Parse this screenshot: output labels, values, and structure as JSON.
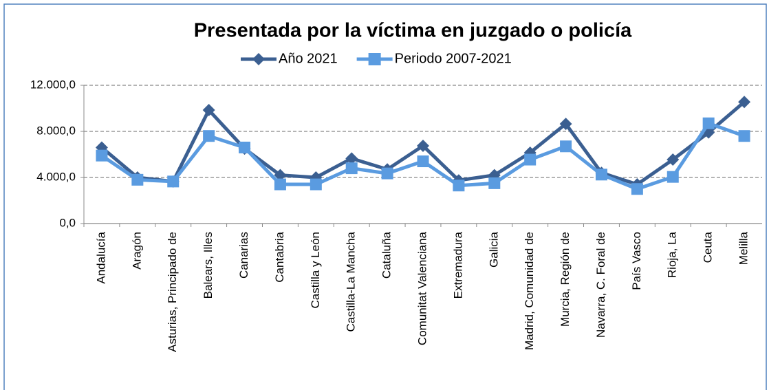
{
  "chart_data": {
    "type": "line",
    "title": "Presentada por la víctima en juzgado o policía",
    "categories": [
      "Andalucía",
      "Aragón",
      "Asturias, Principado de",
      "Balears, Illes",
      "Canarias",
      "Cantabria",
      "Castilla y León",
      "Castilla-La Mancha",
      "Cataluña",
      "Comunitat Valenciana",
      "Extremadura",
      "Galicia",
      "Madrid, Comunidad de",
      "Murcia,  Región de",
      "Navarra, C. Foral de",
      "País Vasco",
      "Rioja, La",
      "Ceuta",
      "Melilla"
    ],
    "series": [
      {
        "name": "Año 2021",
        "color": "#3b5f91",
        "marker": "diamond",
        "values": [
          6600,
          4000,
          3650,
          9850,
          6500,
          4200,
          4000,
          5650,
          4700,
          6750,
          3750,
          4200,
          6150,
          8650,
          4400,
          3400,
          5550,
          7900,
          10550
        ]
      },
      {
        "name": "Periodo 2007-2021",
        "color": "#5a9be0",
        "marker": "square",
        "values": [
          5900,
          3800,
          3650,
          7600,
          6600,
          3400,
          3400,
          4800,
          4350,
          5400,
          3300,
          3500,
          5550,
          6700,
          4250,
          3000,
          4050,
          8700,
          7600
        ]
      }
    ],
    "ylim": [
      0,
      12000
    ],
    "yticks": [
      {
        "value": 0,
        "label": "0,0"
      },
      {
        "value": 4000,
        "label": "4.000,0"
      },
      {
        "value": 8000,
        "label": "8.000,0"
      },
      {
        "value": 12000,
        "label": "12.000,0"
      }
    ],
    "grid": true,
    "legend": "top"
  }
}
